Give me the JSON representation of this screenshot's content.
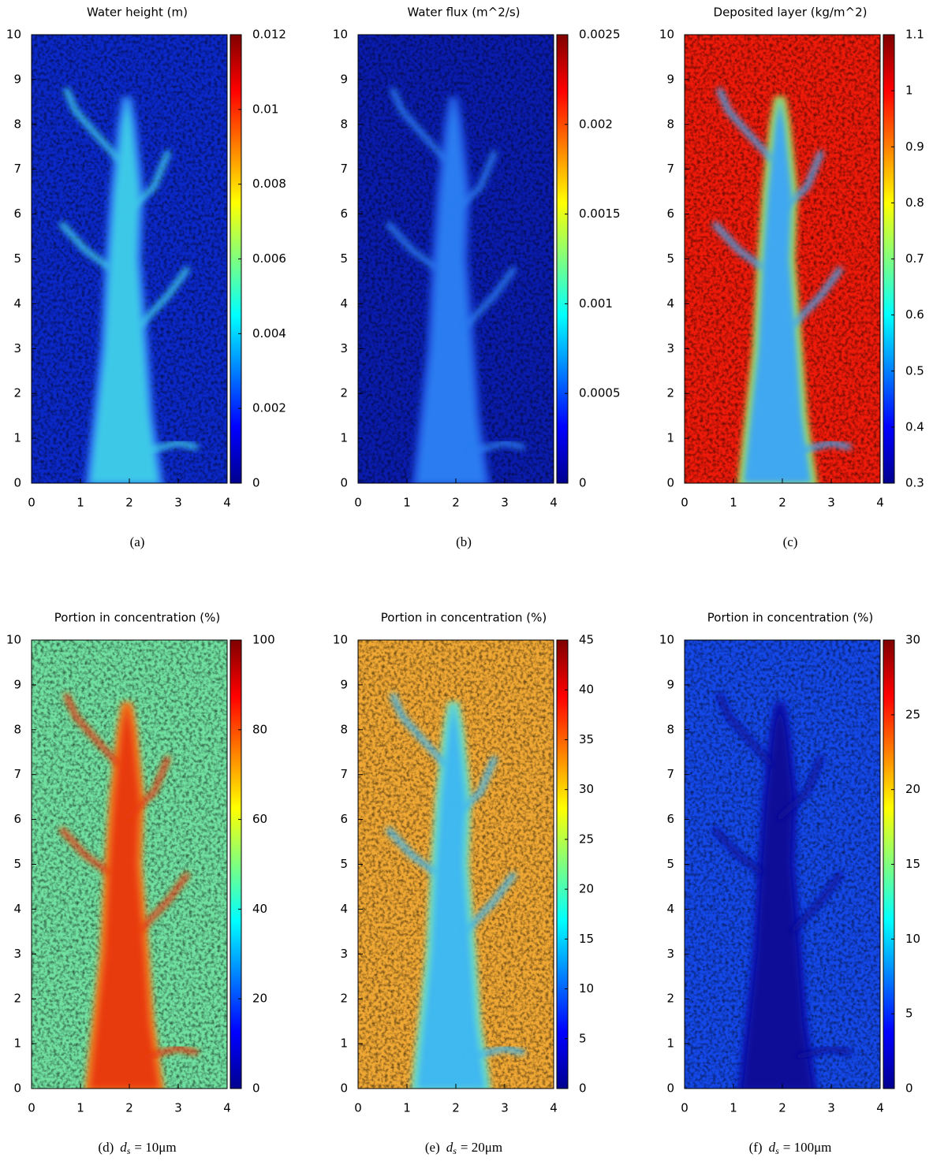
{
  "chart_data": [
    {
      "type": "heatmap",
      "title": "Water height (m)",
      "caption": "(a)",
      "colormap": "jet",
      "xlim": [
        0,
        4
      ],
      "xticks": [
        0,
        1,
        2,
        3,
        4
      ],
      "ylim": [
        0,
        10
      ],
      "yticks": [
        0,
        1,
        2,
        3,
        4,
        5,
        6,
        7,
        8,
        9,
        10
      ],
      "clim": [
        0,
        0.012
      ],
      "cticks": [
        0,
        0.002,
        0.004,
        0.006,
        0.008,
        0.01,
        0.012
      ]
    },
    {
      "type": "heatmap",
      "title": "Water flux (m^2/s)",
      "caption": "(b)",
      "colormap": "jet",
      "xlim": [
        0,
        4
      ],
      "xticks": [
        0,
        1,
        2,
        3,
        4
      ],
      "ylim": [
        0,
        10
      ],
      "yticks": [
        0,
        1,
        2,
        3,
        4,
        5,
        6,
        7,
        8,
        9,
        10
      ],
      "clim": [
        0,
        0.0025
      ],
      "cticks": [
        0,
        0.0005,
        0.001,
        0.0015,
        0.002,
        0.0025
      ]
    },
    {
      "type": "heatmap",
      "title": "Deposited layer (kg/m^2)",
      "caption": "(c)",
      "colormap": "jet",
      "xlim": [
        0,
        4
      ],
      "xticks": [
        0,
        1,
        2,
        3,
        4
      ],
      "ylim": [
        0,
        10
      ],
      "yticks": [
        0,
        1,
        2,
        3,
        4,
        5,
        6,
        7,
        8,
        9,
        10
      ],
      "clim": [
        0.3,
        1.1
      ],
      "cticks": [
        0.3,
        0.4,
        0.5,
        0.6,
        0.7,
        0.8,
        0.9,
        1,
        1.1
      ]
    },
    {
      "type": "heatmap",
      "title": "Portion in concentration (%)",
      "caption": "(d)",
      "formula": [
        "d",
        "s",
        "= 10μm"
      ],
      "colormap": "jet",
      "xlim": [
        0,
        4
      ],
      "xticks": [
        0,
        1,
        2,
        3,
        4
      ],
      "ylim": [
        0,
        10
      ],
      "yticks": [
        0,
        1,
        2,
        3,
        4,
        5,
        6,
        7,
        8,
        9,
        10
      ],
      "clim": [
        0,
        100
      ],
      "cticks": [
        0,
        20,
        40,
        60,
        80,
        100
      ]
    },
    {
      "type": "heatmap",
      "title": "Portion in concentration (%)",
      "caption": "(e)",
      "formula": [
        "d",
        "s",
        "= 20μm"
      ],
      "colormap": "jet",
      "xlim": [
        0,
        4
      ],
      "xticks": [
        0,
        1,
        2,
        3,
        4
      ],
      "ylim": [
        0,
        10
      ],
      "yticks": [
        0,
        1,
        2,
        3,
        4,
        5,
        6,
        7,
        8,
        9,
        10
      ],
      "clim": [
        0,
        45
      ],
      "cticks": [
        0,
        5,
        10,
        15,
        20,
        25,
        30,
        35,
        40,
        45
      ]
    },
    {
      "type": "heatmap",
      "title": "Portion in concentration (%)",
      "caption": "(f)",
      "formula": [
        "d",
        "s",
        "= 100μm"
      ],
      "colormap": "jet",
      "xlim": [
        0,
        4
      ],
      "xticks": [
        0,
        1,
        2,
        3,
        4
      ],
      "ylim": [
        0,
        10
      ],
      "yticks": [
        0,
        1,
        2,
        3,
        4,
        5,
        6,
        7,
        8,
        9,
        10
      ],
      "clim": [
        0,
        30
      ],
      "cticks": [
        0,
        5,
        10,
        15,
        20,
        25,
        30
      ]
    }
  ]
}
